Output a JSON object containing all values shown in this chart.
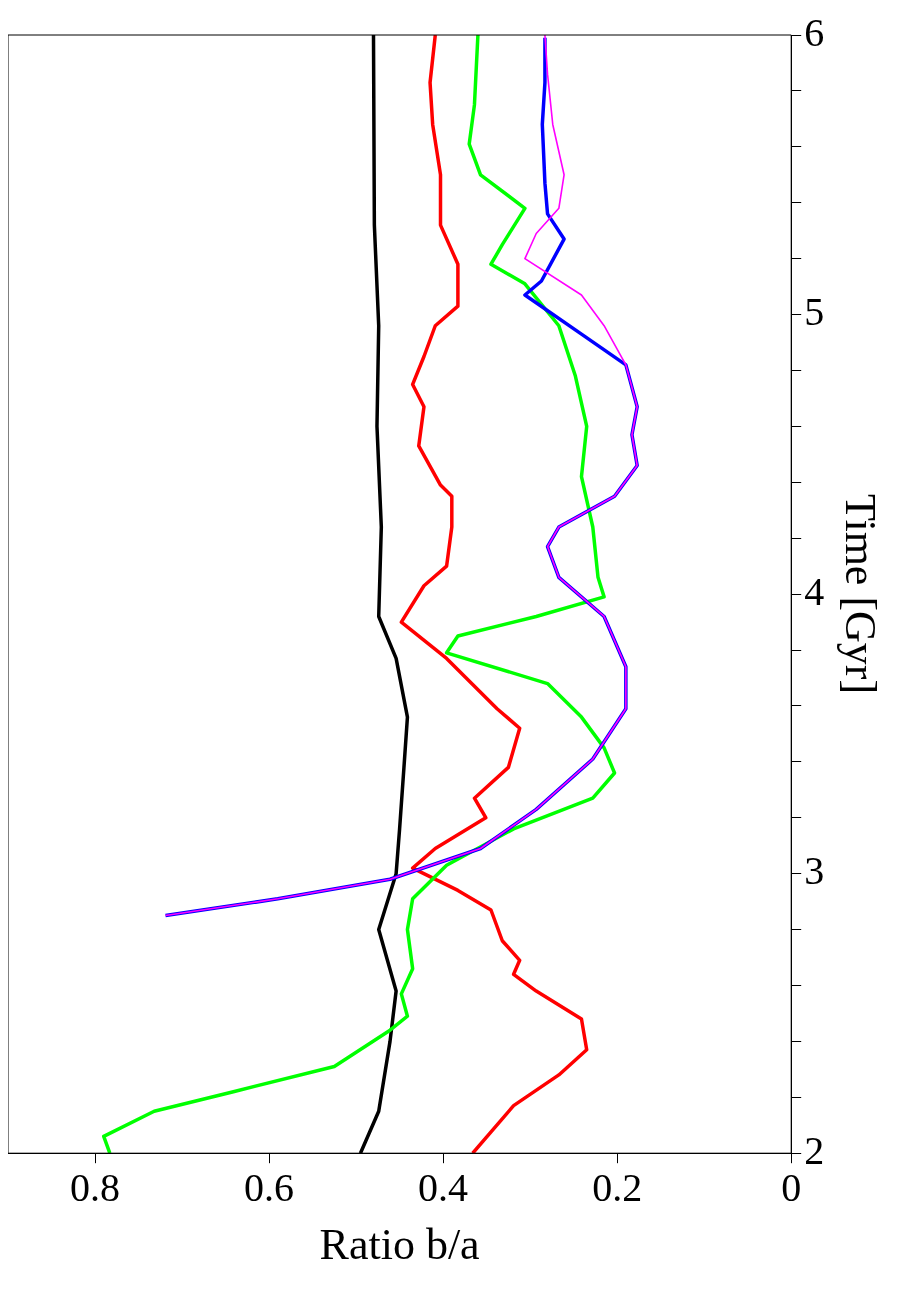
{
  "chart_data": {
    "type": "line",
    "xlabel": "Ratio b/a",
    "ylabel": "Time [Gyr]",
    "xlim": [
      0.9,
      0
    ],
    "ylim": [
      2,
      6
    ],
    "xticks": [
      0,
      0.2,
      0.4,
      0.6,
      0.8
    ],
    "yticks": [
      2,
      {
        "value": 2.2,
        "label": null
      },
      {
        "value": 2.4,
        "label": null
      },
      {
        "value": 2.6,
        "label": null
      },
      {
        "value": 2.8,
        "label": null
      },
      3,
      {
        "value": 3.2,
        "label": null
      },
      {
        "value": 3.4,
        "label": null
      },
      {
        "value": 3.6,
        "label": null
      },
      {
        "value": 3.8,
        "label": null
      },
      4,
      {
        "value": 4.2,
        "label": null
      },
      {
        "value": 4.4,
        "label": null
      },
      {
        "value": 4.6,
        "label": null
      },
      {
        "value": 4.8,
        "label": null
      },
      5,
      {
        "value": 5.2,
        "label": null
      },
      {
        "value": 5.4,
        "label": null
      },
      {
        "value": 5.6,
        "label": null
      },
      {
        "value": 5.8,
        "label": null
      },
      6
    ],
    "grid": false,
    "legend": false,
    "marker": "none",
    "line_style": "solid",
    "series": [
      {
        "color": "#000000",
        "values": [
          2.0,
          2.15,
          2.4,
          2.58,
          2.8,
          3.0,
          3.16,
          3.38,
          3.56,
          3.77,
          3.92,
          4.24,
          4.6,
          4.96,
          5.32,
          6.0
        ],
        "x": [
          0.495,
          0.474,
          0.461,
          0.454,
          0.474,
          0.454,
          0.45,
          0.445,
          0.441,
          0.454,
          0.474,
          0.471,
          0.476,
          0.474,
          0.479,
          0.48
        ]
      },
      {
        "color": "#ff0000",
        "values": [
          2.0,
          2.17,
          2.28,
          2.37,
          2.48,
          2.58,
          2.64,
          2.69,
          2.76,
          2.87,
          2.94,
          3.02,
          3.09,
          3.2,
          3.27,
          3.38,
          3.52,
          3.59,
          3.77,
          3.9,
          4.03,
          4.1,
          4.24,
          4.35,
          4.39,
          4.53,
          4.67,
          4.75,
          4.85,
          4.96,
          5.03,
          5.18,
          5.32,
          5.5,
          5.68,
          5.83,
          6.0
        ],
        "x": [
          0.366,
          0.319,
          0.267,
          0.235,
          0.241,
          0.293,
          0.319,
          0.312,
          0.332,
          0.345,
          0.383,
          0.435,
          0.409,
          0.351,
          0.364,
          0.325,
          0.312,
          0.338,
          0.396,
          0.448,
          0.422,
          0.396,
          0.39,
          0.39,
          0.403,
          0.428,
          0.422,
          0.435,
          0.422,
          0.409,
          0.383,
          0.383,
          0.403,
          0.403,
          0.412,
          0.415,
          0.409
        ]
      },
      {
        "color": "#00ff00",
        "values": [
          2.0,
          2.06,
          2.15,
          2.22,
          2.31,
          2.44,
          2.49,
          2.57,
          2.66,
          2.8,
          2.91,
          3.03,
          3.16,
          3.27,
          3.36,
          3.45,
          3.56,
          3.68,
          3.79,
          3.85,
          3.92,
          3.99,
          4.06,
          4.24,
          4.42,
          4.6,
          4.78,
          4.96,
          5.11,
          5.18,
          5.25,
          5.38,
          5.5,
          5.61,
          5.75,
          6.0
        ],
        "x": [
          0.783,
          0.79,
          0.732,
          0.641,
          0.525,
          0.461,
          0.441,
          0.448,
          0.435,
          0.441,
          0.435,
          0.396,
          0.319,
          0.228,
          0.203,
          0.215,
          0.241,
          0.28,
          0.396,
          0.383,
          0.293,
          0.215,
          0.222,
          0.228,
          0.241,
          0.235,
          0.248,
          0.267,
          0.306,
          0.345,
          0.332,
          0.306,
          0.357,
          0.37,
          0.364,
          0.36
        ]
      },
      {
        "color": "#0000ff",
        "values": [
          2.85,
          2.91,
          2.98,
          3.09,
          3.23,
          3.41,
          3.59,
          3.74,
          3.92,
          4.06,
          4.17,
          4.24,
          4.35,
          4.46,
          4.57,
          4.67,
          4.82,
          4.93,
          5.07,
          5.12,
          5.27,
          5.36,
          5.47,
          5.68,
          5.83,
          5.99
        ],
        "x": [
          0.719,
          0.59,
          0.461,
          0.357,
          0.293,
          0.228,
          0.19,
          0.19,
          0.215,
          0.267,
          0.28,
          0.267,
          0.203,
          0.177,
          0.183,
          0.177,
          0.19,
          0.241,
          0.306,
          0.287,
          0.261,
          0.28,
          0.283,
          0.286,
          0.283,
          0.283
        ]
      },
      {
        "color": "#ff00ff",
        "values": [
          2.85,
          2.91,
          2.98,
          3.09,
          3.23,
          3.41,
          3.59,
          3.74,
          3.92,
          4.06,
          4.17,
          4.24,
          4.35,
          4.46,
          4.57,
          4.67,
          4.82,
          4.96,
          5.07,
          5.2,
          5.29,
          5.38,
          5.5,
          5.68,
          5.86,
          6.0
        ],
        "x": [
          0.719,
          0.59,
          0.461,
          0.357,
          0.293,
          0.228,
          0.19,
          0.19,
          0.215,
          0.267,
          0.28,
          0.267,
          0.203,
          0.177,
          0.183,
          0.177,
          0.19,
          0.215,
          0.241,
          0.306,
          0.293,
          0.267,
          0.261,
          0.274,
          0.28,
          0.283
        ]
      }
    ]
  }
}
